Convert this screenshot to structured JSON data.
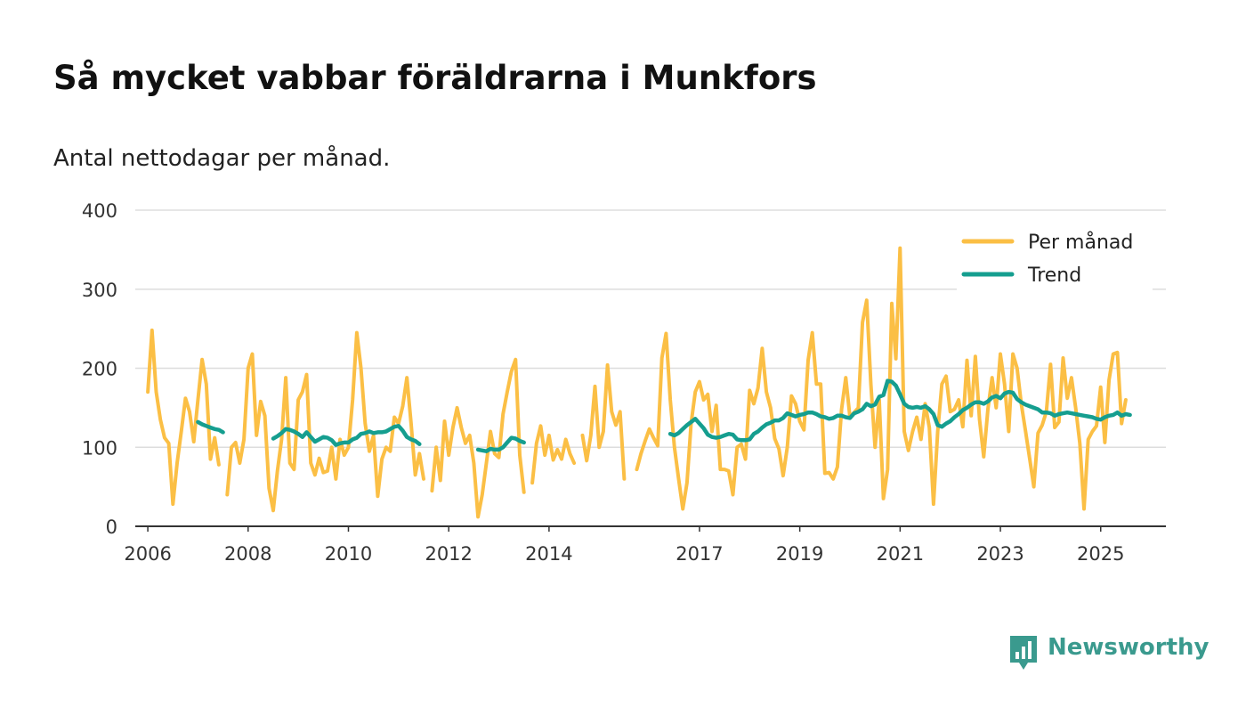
{
  "header": {
    "title": "Så mycket vabbar föräldrarna i Munkfors",
    "subtitle": "Antal nettodagar per månad."
  },
  "brand": {
    "name": "Newsworthy",
    "color": "#3a9a8e",
    "icon": "chart-bubble-icon"
  },
  "chart_data": {
    "type": "line",
    "title": "Så mycket vabbar föräldrarna i Munkfors",
    "subtitle": "Antal nettodagar per månad.",
    "xlabel": "",
    "ylabel": "",
    "xlim": [
      2005.75,
      2026.3
    ],
    "ylim": [
      0,
      400
    ],
    "yticks": [
      0,
      100,
      200,
      300,
      400
    ],
    "xticks": [
      2006,
      2008,
      2010,
      2012,
      2014,
      2017,
      2019,
      2021,
      2023,
      2025
    ],
    "grid": true,
    "legend": {
      "position": "top-right",
      "entries": [
        "Per månad",
        "Trend"
      ]
    },
    "series": [
      {
        "name": "Per månad",
        "color": "#fbbf45",
        "start": 2006.0,
        "step": 0.0833333,
        "values": [
          170,
          248,
          170,
          135,
          112,
          105,
          28,
          80,
          120,
          162,
          145,
          107,
          160,
          211,
          180,
          85,
          112,
          78,
          null,
          40,
          100,
          106,
          80,
          110,
          200,
          218,
          115,
          158,
          140,
          48,
          20,
          70,
          110,
          188,
          80,
          72,
          160,
          170,
          192,
          80,
          65,
          86,
          68,
          70,
          100,
          60,
          110,
          90,
          100,
          160,
          245,
          200,
          130,
          95,
          115,
          38,
          85,
          100,
          95,
          138,
          130,
          152,
          188,
          130,
          65,
          92,
          60,
          null,
          45,
          100,
          58,
          133,
          90,
          125,
          150,
          125,
          105,
          115,
          80,
          12,
          40,
          80,
          120,
          92,
          87,
          142,
          170,
          196,
          211,
          90,
          43,
          null,
          55,
          105,
          127,
          90,
          115,
          84,
          97,
          85,
          110,
          92,
          80,
          null,
          115,
          83,
          115,
          177,
          100,
          120,
          204,
          145,
          128,
          145,
          60,
          null,
          null,
          72,
          92,
          108,
          123,
          112,
          102,
          213,
          244,
          160,
          100,
          60,
          22,
          55,
          130,
          170,
          183,
          160,
          167,
          120,
          153,
          72,
          72,
          70,
          40,
          100,
          104,
          85,
          172,
          155,
          175,
          225,
          170,
          150,
          111,
          98,
          64,
          100,
          165,
          155,
          133,
          122,
          210,
          245,
          180,
          180,
          67,
          68,
          60,
          75,
          148,
          188,
          138,
          144,
          150,
          258,
          286,
          180,
          100,
          160,
          35,
          72,
          282,
          212,
          352,
          120,
          96,
          120,
          138,
          110,
          155,
          125,
          28,
          120,
          180,
          190,
          145,
          148,
          160,
          126,
          210,
          140,
          215,
          135,
          88,
          148,
          188,
          150,
          218,
          180,
          120,
          218,
          200,
          155,
          121,
          86,
          50,
          118,
          128,
          145,
          205,
          125,
          132,
          213,
          162,
          188,
          150,
          105,
          22,
          110,
          120,
          127,
          176,
          106,
          185,
          218,
          220,
          130,
          160
        ]
      },
      {
        "name": "Trend",
        "color": "#159e8f",
        "start": 2006.0,
        "step": 0.0833333,
        "values": [
          null,
          null,
          null,
          null,
          null,
          null,
          null,
          null,
          null,
          null,
          null,
          null,
          132,
          129,
          127,
          125,
          123,
          122,
          119,
          null,
          null,
          null,
          null,
          null,
          null,
          null,
          null,
          null,
          null,
          null,
          111,
          114,
          118,
          123,
          122,
          120,
          117,
          113,
          119,
          113,
          107,
          110,
          113,
          112,
          109,
          103,
          105,
          106,
          106,
          110,
          112,
          117,
          118,
          120,
          118,
          119,
          119,
          120,
          123,
          126,
          127,
          121,
          113,
          110,
          108,
          104,
          null,
          null,
          null,
          null,
          null,
          null,
          null,
          null,
          null,
          null,
          null,
          null,
          null,
          97,
          96,
          95,
          98,
          97,
          97,
          100,
          106,
          112,
          111,
          108,
          106,
          null,
          null,
          null,
          null,
          null,
          null,
          null,
          null,
          null,
          null,
          null,
          null,
          null,
          null,
          null,
          null,
          null,
          null,
          null,
          null,
          null,
          null,
          null,
          null,
          null,
          null,
          null,
          null,
          null,
          null,
          null,
          null,
          null,
          null,
          117,
          115,
          118,
          123,
          128,
          132,
          136,
          130,
          124,
          116,
          113,
          112,
          113,
          115,
          117,
          116,
          110,
          109,
          109,
          110,
          117,
          120,
          125,
          129,
          131,
          134,
          134,
          137,
          143,
          141,
          139,
          141,
          142,
          144,
          144,
          142,
          139,
          138,
          136,
          137,
          140,
          140,
          138,
          137,
          143,
          145,
          148,
          155,
          152,
          154,
          164,
          166,
          184,
          183,
          178,
          167,
          155,
          151,
          150,
          151,
          150,
          152,
          148,
          142,
          128,
          126,
          130,
          133,
          138,
          142,
          147,
          150,
          154,
          157,
          157,
          155,
          158,
          163,
          165,
          162,
          168,
          170,
          169,
          161,
          157,
          154,
          152,
          150,
          148,
          144,
          144,
          143,
          140,
          142,
          143,
          144,
          143,
          142,
          141,
          140,
          139,
          138,
          136,
          135,
          138,
          140,
          141,
          144,
          140,
          142,
          141
        ]
      }
    ]
  }
}
